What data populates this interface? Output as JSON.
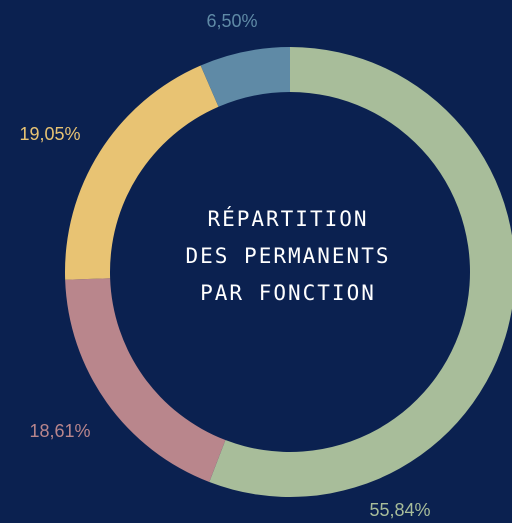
{
  "chart_data": {
    "type": "pie",
    "title": [
      "RÉPARTITION",
      "DES PERMANENTS",
      "PAR FONCTION"
    ],
    "values": [
      55.84,
      18.61,
      19.05,
      6.5
    ],
    "value_labels": [
      "55,84%",
      "18,61%",
      "19,05%",
      "6,50%"
    ],
    "colors": [
      "#a8bd9a",
      "#b9868c",
      "#e8c373",
      "#5f8aa6"
    ]
  }
}
